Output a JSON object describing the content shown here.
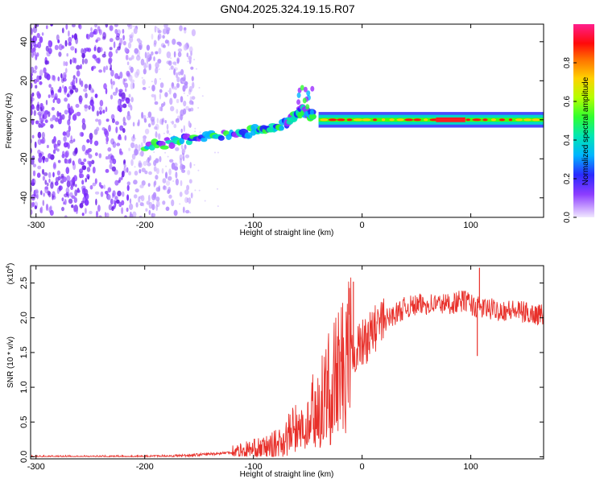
{
  "title": "GN04.2025.324.19.15.R07",
  "colors": {
    "signal_line": "#e8302a",
    "noise_purple": "#7b2cff",
    "axis": "#000000",
    "background": "#ffffff"
  },
  "chart_data": [
    {
      "type": "heatmap",
      "name": "spectrogram",
      "xlabel": "Height of straight line (km)",
      "ylabel": "Frequency (Hz)",
      "xlim": [
        -305,
        167
      ],
      "ylim": [
        -50,
        49
      ],
      "xticks": [
        -300,
        -200,
        -100,
        0,
        100
      ],
      "yticks": [
        -40,
        -20,
        0,
        20,
        40
      ],
      "colorbar": {
        "label": "Normalized spectral amplitude",
        "range": [
          0,
          1
        ],
        "ticks": [
          "0.0",
          "0.2",
          "0.4",
          "0.6",
          "0.8"
        ],
        "tick_values": [
          0.0,
          0.2,
          0.4,
          0.6,
          0.8
        ],
        "colormap": [
          "#d8c8ff",
          "#9a3cff",
          "#3030ff",
          "#00c8ff",
          "#00e08a",
          "#48ff00",
          "#d8ff00",
          "#ffc800",
          "#ff5000",
          "#ff0000",
          "#ff1c8c"
        ]
      },
      "features": [
        {
          "feature": "broadband noise",
          "x_range": [
            -305,
            -160
          ],
          "y_range": [
            -50,
            49
          ],
          "amplitude": 0.1
        },
        {
          "feature": "rising signal track",
          "points": [
            [
              -200,
              -14
            ],
            [
              -150,
              -9
            ],
            [
              -100,
              -6
            ],
            [
              -70,
              -2
            ],
            [
              -55,
              5
            ],
            [
              -45,
              2
            ]
          ],
          "amplitude": 0.4
        },
        {
          "feature": "burst near -50 km",
          "x": -52,
          "y": 10,
          "amplitude": 0.5
        },
        {
          "feature": "steady line near 0 Hz",
          "x_range": [
            -40,
            167
          ],
          "y": 0,
          "amplitude": 0.85
        }
      ]
    },
    {
      "type": "line",
      "name": "snr",
      "xlabel": "Height of straight line (km)",
      "ylabel": "SNR (10 * v/v)",
      "scale_label": "(x10",
      "scale_exponent": "4",
      "xlim": [
        -305,
        167
      ],
      "ylim": [
        -0.03,
        2.75
      ],
      "xticks": [
        -300,
        -200,
        -100,
        0,
        100
      ],
      "yticks": [
        0.0,
        0.5,
        1.0,
        1.5,
        2.0,
        2.5
      ],
      "x": [
        -305,
        -250,
        -200,
        -160,
        -130,
        -110,
        -90,
        -75,
        -65,
        -55,
        -45,
        -35,
        -25,
        -15,
        -5,
        5,
        15,
        25,
        40,
        60,
        80,
        95,
        105,
        120,
        140,
        160,
        167
      ],
      "y": [
        0.0,
        0.0,
        0.0,
        0.02,
        0.05,
        0.08,
        0.12,
        0.2,
        0.35,
        0.5,
        0.7,
        0.9,
        1.1,
        1.35,
        1.55,
        1.7,
        1.9,
        2.0,
        2.15,
        2.2,
        2.2,
        2.25,
        2.15,
        2.12,
        2.1,
        2.05,
        2.05
      ],
      "spikes": [
        {
          "x": -8,
          "y": 2.52
        },
        {
          "x": 108,
          "y": 2.72
        },
        {
          "x": 106,
          "y": 1.45
        }
      ]
    }
  ]
}
